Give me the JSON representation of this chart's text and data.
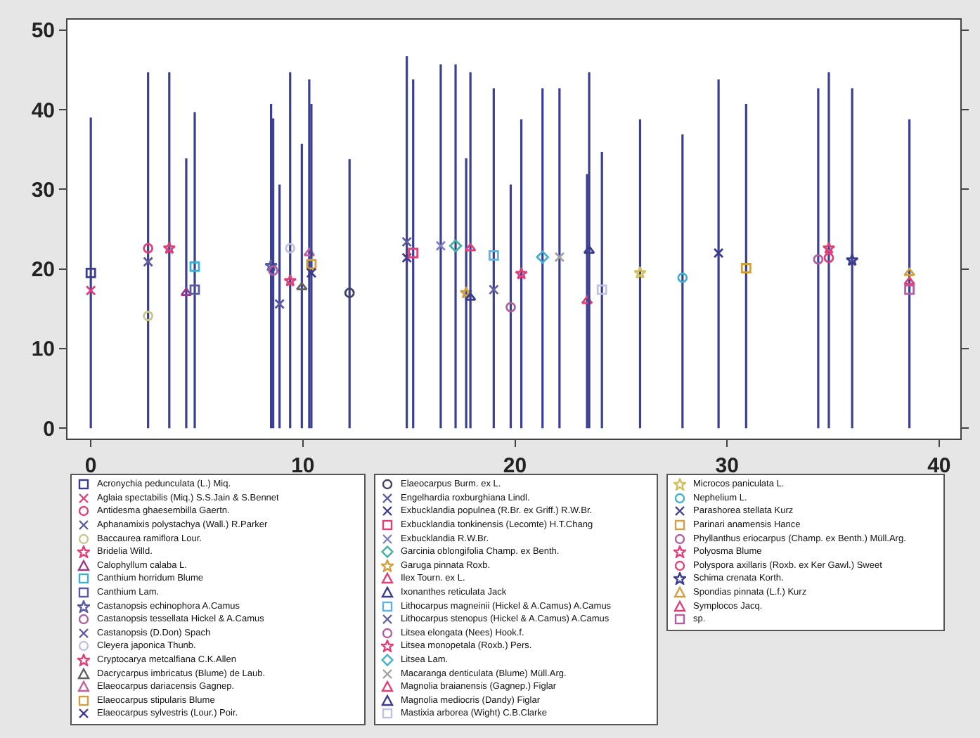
{
  "chart_data": {
    "type": "scatter",
    "xlim": [
      -1.1,
      41
    ],
    "ylim": [
      -1.3,
      51.3
    ],
    "xticks": [
      0,
      10,
      20,
      30,
      40
    ],
    "yticks": [
      0,
      10,
      20,
      30,
      40,
      50
    ],
    "grid": false,
    "legend": "bottom",
    "series": [
      {
        "name": "Acronychia pedunculata (L.) Miq.",
        "color": "#3b3b8f",
        "marker": "square",
        "x": [
          0
        ],
        "values": [
          19.5
        ],
        "errors": [
          [
            0,
            39
          ]
        ]
      },
      {
        "name": "Aglaia spectabilis (Miq.) S.S.Jain & S.Bennet",
        "color": "#e0407a",
        "marker": "cross",
        "x": [
          0
        ],
        "values": [
          17.3
        ],
        "errors": [
          null
        ]
      },
      {
        "name": "Antidesma ghaesembilla Gaertn.",
        "color": "#e0407a",
        "marker": "circle",
        "x": [
          2.7
        ],
        "values": [
          22.6
        ],
        "errors": [
          [
            0,
            44.7
          ]
        ]
      },
      {
        "name": "Aphanamixis polystachya (Wall.) R.Parker",
        "color": "#5a5aa0",
        "marker": "cross",
        "x": [
          2.7
        ],
        "values": [
          20.9
        ],
        "errors": [
          null
        ]
      },
      {
        "name": "Baccaurea ramiflora Lour.",
        "color": "#c8c890",
        "marker": "circle",
        "x": [
          2.7
        ],
        "values": [
          14.1
        ],
        "errors": [
          null
        ]
      },
      {
        "name": "Bridelia Willd.",
        "color": "#e0407a",
        "marker": "star",
        "x": [
          3.7
        ],
        "values": [
          22.6
        ],
        "errors": [
          [
            0,
            44.7
          ]
        ]
      },
      {
        "name": "Calophyllum calaba L.",
        "color": "#9a3a8a",
        "marker": "triangle",
        "x": [
          4.5
        ],
        "values": [
          17
        ],
        "errors": [
          [
            0,
            33.9
          ]
        ]
      },
      {
        "name": "Canthium horridum Blume",
        "color": "#40b0d0",
        "marker": "square",
        "x": [
          4.9
        ],
        "values": [
          20.3
        ],
        "errors": [
          [
            0,
            39.7
          ]
        ]
      },
      {
        "name": "Canthium Lam.",
        "color": "#5a5aa0",
        "marker": "square",
        "x": [
          4.9
        ],
        "values": [
          17.4
        ],
        "errors": [
          null
        ]
      },
      {
        "name": "Castanopsis echinophora A.Camus",
        "color": "#5a5aa0",
        "marker": "star",
        "x": [
          8.5
        ],
        "values": [
          20.4
        ],
        "errors": [
          [
            0,
            40.7
          ]
        ]
      },
      {
        "name": "Castanopsis tessellata Hickel & A.Camus",
        "color": "#b060a0",
        "marker": "circle",
        "x": [
          8.6
        ],
        "values": [
          19.8
        ],
        "errors": [
          [
            0,
            38.9
          ]
        ]
      },
      {
        "name": "Castanopsis (D.Don) Spach",
        "color": "#5a5aa0",
        "marker": "cross",
        "x": [
          8.9
        ],
        "values": [
          15.6
        ],
        "errors": [
          [
            0,
            30.6
          ]
        ]
      },
      {
        "name": "Cleyera japonica Thunb.",
        "color": "#c0c0e0",
        "marker": "circle",
        "x": [
          9.4
        ],
        "values": [
          22.6
        ],
        "errors": [
          [
            0,
            44.7
          ]
        ]
      },
      {
        "name": "Cryptocarya metcalfiana C.K.Allen",
        "color": "#e0407a",
        "marker": "star",
        "x": [
          9.4
        ],
        "values": [
          18.5
        ],
        "errors": [
          null
        ]
      },
      {
        "name": "Dacrycarpus imbricatus (Blume) de Laub.",
        "color": "#606060",
        "marker": "triangle",
        "x": [
          9.95
        ],
        "values": [
          17.7
        ],
        "errors": [
          [
            0,
            35.7
          ]
        ]
      },
      {
        "name": "Elaeocarpus dariacensis Gagnep.",
        "color": "#c060a0",
        "marker": "triangle",
        "x": [
          10.3
        ],
        "values": [
          22
        ],
        "errors": [
          [
            0,
            43.8
          ]
        ]
      },
      {
        "name": "Elaeocarpus stipularis Blume",
        "color": "#d0a040",
        "marker": "square",
        "x": [
          10.4
        ],
        "values": [
          20.6
        ],
        "errors": [
          [
            0,
            40.7
          ]
        ]
      },
      {
        "name": "Elaeocarpus sylvestris (Lour.) Poir.",
        "color": "#3b3b8f",
        "marker": "cross",
        "x": [
          10.4
        ],
        "values": [
          19.5
        ],
        "errors": [
          null
        ]
      },
      {
        "name": "Elaeocarpus Burm. ex L.",
        "color": "#404060",
        "marker": "circle",
        "x": [
          12.2
        ],
        "values": [
          17
        ],
        "errors": [
          [
            0,
            33.8
          ]
        ]
      },
      {
        "name": "Engelhardia roxburghiana Lindl.",
        "color": "#5a5aa0",
        "marker": "cross",
        "x": [
          14.9
        ],
        "values": [
          23.4
        ],
        "errors": [
          [
            0,
            46.7
          ]
        ]
      },
      {
        "name": "Exbucklandia populnea (R.Br. ex Griff.) R.W.Br.",
        "color": "#3b3b8f",
        "marker": "cross",
        "x": [
          14.9
        ],
        "values": [
          21.4
        ],
        "errors": [
          null
        ]
      },
      {
        "name": "Exbucklandia tonkinensis (Lecomte) H.T.Chang",
        "color": "#e0407a",
        "marker": "square",
        "x": [
          15.2
        ],
        "values": [
          22
        ],
        "errors": [
          [
            0,
            43.8
          ]
        ]
      },
      {
        "name": "Exbucklandia R.W.Br.",
        "color": "#8080c0",
        "marker": "cross",
        "x": [
          16.5
        ],
        "values": [
          22.9
        ],
        "errors": [
          [
            0,
            45.7
          ]
        ]
      },
      {
        "name": "Garcinia oblongifolia Champ. ex Benth.",
        "color": "#40b0a0",
        "marker": "diamond",
        "x": [
          17.2
        ],
        "values": [
          22.9
        ],
        "errors": [
          [
            0,
            45.7
          ]
        ]
      },
      {
        "name": "Garuga pinnata Roxb.",
        "color": "#d0a040",
        "marker": "star",
        "x": [
          17.7
        ],
        "values": [
          17
        ],
        "errors": [
          [
            0,
            33.9
          ]
        ]
      },
      {
        "name": "Ilex Tourn. ex L.",
        "color": "#e0407a",
        "marker": "triangle",
        "x": [
          17.9
        ],
        "values": [
          22.6
        ],
        "errors": [
          [
            0,
            44.7
          ]
        ]
      },
      {
        "name": "Ixonanthes reticulata Jack",
        "color": "#3b3b8f",
        "marker": "triangle",
        "x": [
          17.9
        ],
        "values": [
          16.4
        ],
        "errors": [
          null
        ]
      },
      {
        "name": "Lithocarpus magneinii (Hickel & A.Camus) A.Camus",
        "color": "#60b0e0",
        "marker": "square",
        "x": [
          19.0
        ],
        "values": [
          21.7
        ],
        "errors": [
          [
            0,
            42.7
          ]
        ]
      },
      {
        "name": "Lithocarpus stenopus (Hickel & A.Camus) A.Camus",
        "color": "#6060a0",
        "marker": "cross",
        "x": [
          19.0
        ],
        "values": [
          17.4
        ],
        "errors": [
          null
        ]
      },
      {
        "name": "Litsea elongata (Nees) Hook.f.",
        "color": "#b060a0",
        "marker": "circle",
        "x": [
          19.8
        ],
        "values": [
          15.2
        ],
        "errors": [
          [
            0,
            30.6
          ]
        ]
      },
      {
        "name": "Litsea monopetala (Roxb.) Pers.",
        "color": "#e0407a",
        "marker": "star",
        "x": [
          20.3
        ],
        "values": [
          19.4
        ],
        "errors": [
          [
            0,
            38.8
          ]
        ]
      },
      {
        "name": "Litsea Lam.",
        "color": "#40b0d0",
        "marker": "diamond",
        "x": [
          21.3
        ],
        "values": [
          21.5
        ],
        "errors": [
          [
            0,
            42.7
          ]
        ]
      },
      {
        "name": "Macaranga denticulata (Blume) Müll.Arg.",
        "color": "#a0a0a0",
        "marker": "cross",
        "x": [
          22.1
        ],
        "values": [
          21.5
        ],
        "errors": [
          [
            0,
            42.7
          ]
        ]
      },
      {
        "name": "Magnolia braianensis (Gagnep.) Figlar",
        "color": "#e0407a",
        "marker": "triangle",
        "x": [
          23.4
        ],
        "values": [
          16
        ],
        "errors": [
          [
            0,
            31.9
          ]
        ]
      },
      {
        "name": "Magnolia mediocris (Dandy) Figlar",
        "color": "#3b3b8f",
        "marker": "triangle",
        "x": [
          23.5
        ],
        "values": [
          22.3
        ],
        "errors": [
          [
            0,
            44.7
          ]
        ]
      },
      {
        "name": "Mastixia arborea (Wight) C.B.Clarke",
        "color": "#c0c0e0",
        "marker": "square",
        "x": [
          24.1
        ],
        "values": [
          17.4
        ],
        "errors": [
          [
            0,
            34.7
          ]
        ]
      },
      {
        "name": "Microcos paniculata L.",
        "color": "#d0c060",
        "marker": "star",
        "x": [
          25.9
        ],
        "values": [
          19.5
        ],
        "errors": [
          [
            0,
            38.8
          ]
        ]
      },
      {
        "name": "Nephelium L.",
        "color": "#40b0d0",
        "marker": "circle",
        "x": [
          27.9
        ],
        "values": [
          18.9
        ],
        "errors": [
          [
            0,
            36.9
          ]
        ]
      },
      {
        "name": "Parashorea stellata Kurz",
        "color": "#3b3b8f",
        "marker": "cross",
        "x": [
          29.6
        ],
        "values": [
          22
        ],
        "errors": [
          [
            0,
            43.8
          ]
        ]
      },
      {
        "name": "Parinari anamensis Hance",
        "color": "#d0a040",
        "marker": "square",
        "x": [
          30.9
        ],
        "values": [
          20.1
        ],
        "errors": [
          [
            0,
            40.7
          ]
        ]
      },
      {
        "name": "Phyllanthus eriocarpus (Champ. ex Benth.) Müll.Arg.",
        "color": "#b060a0",
        "marker": "circle",
        "x": [
          34.3
        ],
        "values": [
          21.2
        ],
        "errors": [
          [
            0,
            42.7
          ]
        ]
      },
      {
        "name": "Polyosma Blume",
        "color": "#e0407a",
        "marker": "star",
        "x": [
          34.8
        ],
        "values": [
          22.6
        ],
        "errors": [
          [
            0,
            44.7
          ]
        ]
      },
      {
        "name": "Polyspora axillaris (Roxb. ex Ker Gawl.) Sweet",
        "color": "#e0407a",
        "marker": "circle",
        "x": [
          34.8
        ],
        "values": [
          21.4
        ],
        "errors": [
          null
        ]
      },
      {
        "name": "Schima crenata Korth.",
        "color": "#3b3b8f",
        "marker": "star",
        "x": [
          35.9
        ],
        "values": [
          21.1
        ],
        "errors": [
          [
            0,
            42.7
          ]
        ]
      },
      {
        "name": "Spondias pinnata (L.f.) Kurz",
        "color": "#d0a040",
        "marker": "triangle",
        "x": [
          38.6
        ],
        "values": [
          19.5
        ],
        "errors": [
          [
            0,
            38.8
          ]
        ]
      },
      {
        "name": "Symplocos Jacq.",
        "color": "#e0407a",
        "marker": "triangle",
        "x": [
          38.6
        ],
        "values": [
          18.4
        ],
        "errors": [
          null
        ]
      },
      {
        "name": "sp.",
        "color": "#b060a0",
        "marker": "square",
        "x": [
          38.6
        ],
        "values": [
          17.4
        ],
        "errors": [
          null
        ]
      }
    ]
  }
}
